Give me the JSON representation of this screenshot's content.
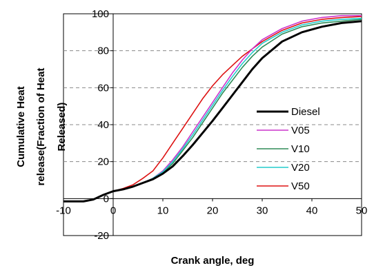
{
  "chart_data": {
    "type": "line",
    "xlabel": "Crank angle, deg",
    "ylabel_line1": "Cumulative Heat",
    "ylabel_line2": "release(Fraction of Heat",
    "ylabel_line3": "Released)",
    "xlim": [
      -10,
      50
    ],
    "ylim": [
      -20,
      100
    ],
    "x_ticks": [
      "-10",
      "0",
      "10",
      "20",
      "30",
      "40",
      "50"
    ],
    "y_ticks": [
      "-20",
      "0",
      "20",
      "40",
      "60",
      "80",
      "100"
    ],
    "grid": "horizontal dashed",
    "legend_position": "right",
    "series": [
      {
        "name": "Diesel",
        "color": "#000000",
        "x": [
          -14,
          -6,
          -4,
          -2,
          0,
          2,
          4,
          6,
          8,
          10,
          12,
          14,
          16,
          18,
          20,
          22,
          24,
          26,
          28,
          30,
          34,
          38,
          42,
          46,
          50
        ],
        "y": [
          -1.5,
          -1.5,
          -0.5,
          2,
          4,
          5,
          6.5,
          8.5,
          10.5,
          13.5,
          17.5,
          23,
          29,
          35.5,
          42,
          49,
          56,
          63,
          70,
          76,
          85,
          90,
          93,
          95,
          96
        ]
      },
      {
        "name": "V05",
        "color": "#cc33cc",
        "x": [
          -14,
          -6,
          -4,
          -2,
          0,
          2,
          4,
          6,
          8,
          10,
          12,
          14,
          16,
          18,
          20,
          22,
          24,
          26,
          28,
          30,
          34,
          38,
          42,
          46,
          50
        ],
        "y": [
          -1.5,
          -1.5,
          -0.5,
          2,
          4,
          5,
          6.5,
          8.5,
          11,
          15,
          21,
          28,
          36,
          44,
          52,
          60,
          68,
          75,
          81,
          86,
          92,
          96,
          98,
          99,
          99
        ]
      },
      {
        "name": "V10",
        "color": "#2e8b57",
        "x": [
          -14,
          -6,
          -4,
          -2,
          0,
          2,
          4,
          6,
          8,
          10,
          12,
          14,
          16,
          18,
          20,
          22,
          24,
          26,
          28,
          30,
          34,
          38,
          42,
          46,
          50
        ],
        "y": [
          -1.5,
          -1.5,
          -0.5,
          2,
          4,
          5,
          6.5,
          8.5,
          10.5,
          14,
          19,
          26,
          33,
          41,
          49,
          57,
          64,
          71,
          77,
          82,
          89,
          93,
          95,
          96,
          97
        ]
      },
      {
        "name": "V20",
        "color": "#22cccc",
        "x": [
          -14,
          -6,
          -4,
          -2,
          0,
          2,
          4,
          6,
          8,
          10,
          12,
          14,
          16,
          18,
          20,
          22,
          24,
          26,
          28,
          30,
          34,
          38,
          42,
          46,
          50
        ],
        "y": [
          -1.5,
          -1.5,
          -0.5,
          2,
          4,
          5,
          6.5,
          8.5,
          11,
          14.5,
          20,
          27,
          34.5,
          42.5,
          50.5,
          58.5,
          66,
          73,
          79,
          84,
          90,
          94,
          96,
          97,
          97.5
        ]
      },
      {
        "name": "V50",
        "color": "#dd1111",
        "x": [
          -14,
          -6,
          -4,
          -2,
          0,
          2,
          4,
          6,
          8,
          10,
          12,
          14,
          16,
          18,
          20,
          22,
          24,
          26,
          28,
          30,
          34,
          38,
          42,
          46,
          50
        ],
        "y": [
          -1.5,
          -1.5,
          -0.5,
          2,
          4,
          5.5,
          7.5,
          11,
          15,
          22,
          30,
          38,
          46,
          54,
          61,
          67,
          72,
          77,
          81,
          85,
          91,
          95,
          97,
          98,
          98.5
        ]
      }
    ]
  }
}
